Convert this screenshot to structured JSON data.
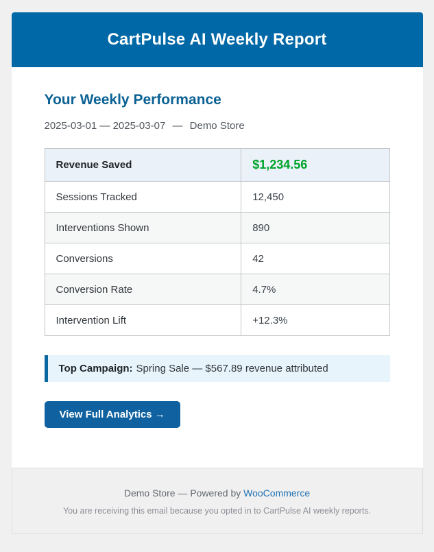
{
  "header": {
    "title": "CartPulse AI Weekly Report"
  },
  "report": {
    "heading": "Your Weekly Performance",
    "date_range": "2025-03-01 — 2025-03-07",
    "separator": "—",
    "store_name": "Demo Store"
  },
  "metrics": {
    "rows": [
      {
        "label": "Revenue Saved",
        "value": "$1,234.56"
      },
      {
        "label": "Sessions Tracked",
        "value": "12,450"
      },
      {
        "label": "Interventions Shown",
        "value": "890"
      },
      {
        "label": "Conversions",
        "value": "42"
      },
      {
        "label": "Conversion Rate",
        "value": "4.7%"
      },
      {
        "label": "Intervention Lift",
        "value": "+12.3%"
      }
    ]
  },
  "campaign": {
    "label": "Top Campaign:",
    "text": "Spring Sale — $567.89 revenue attributed"
  },
  "cta": {
    "label": "View Full Analytics →"
  },
  "footer": {
    "powered_by": "Demo Store — Powered by",
    "link": "WooCommerce",
    "disclaimer": "You are receiving this email because you opted in to CartPulse AI weekly reports."
  },
  "colors": {
    "header_bg": "#0068a6",
    "heading_text": "#0c6295",
    "revenue_green": "#00a32a",
    "button_bg": "#0f61a0",
    "callout_bg": "#e7f4fb",
    "callout_border": "#0a67a0",
    "link_blue": "#2271b1",
    "page_bg": "#f0f0f1"
  }
}
